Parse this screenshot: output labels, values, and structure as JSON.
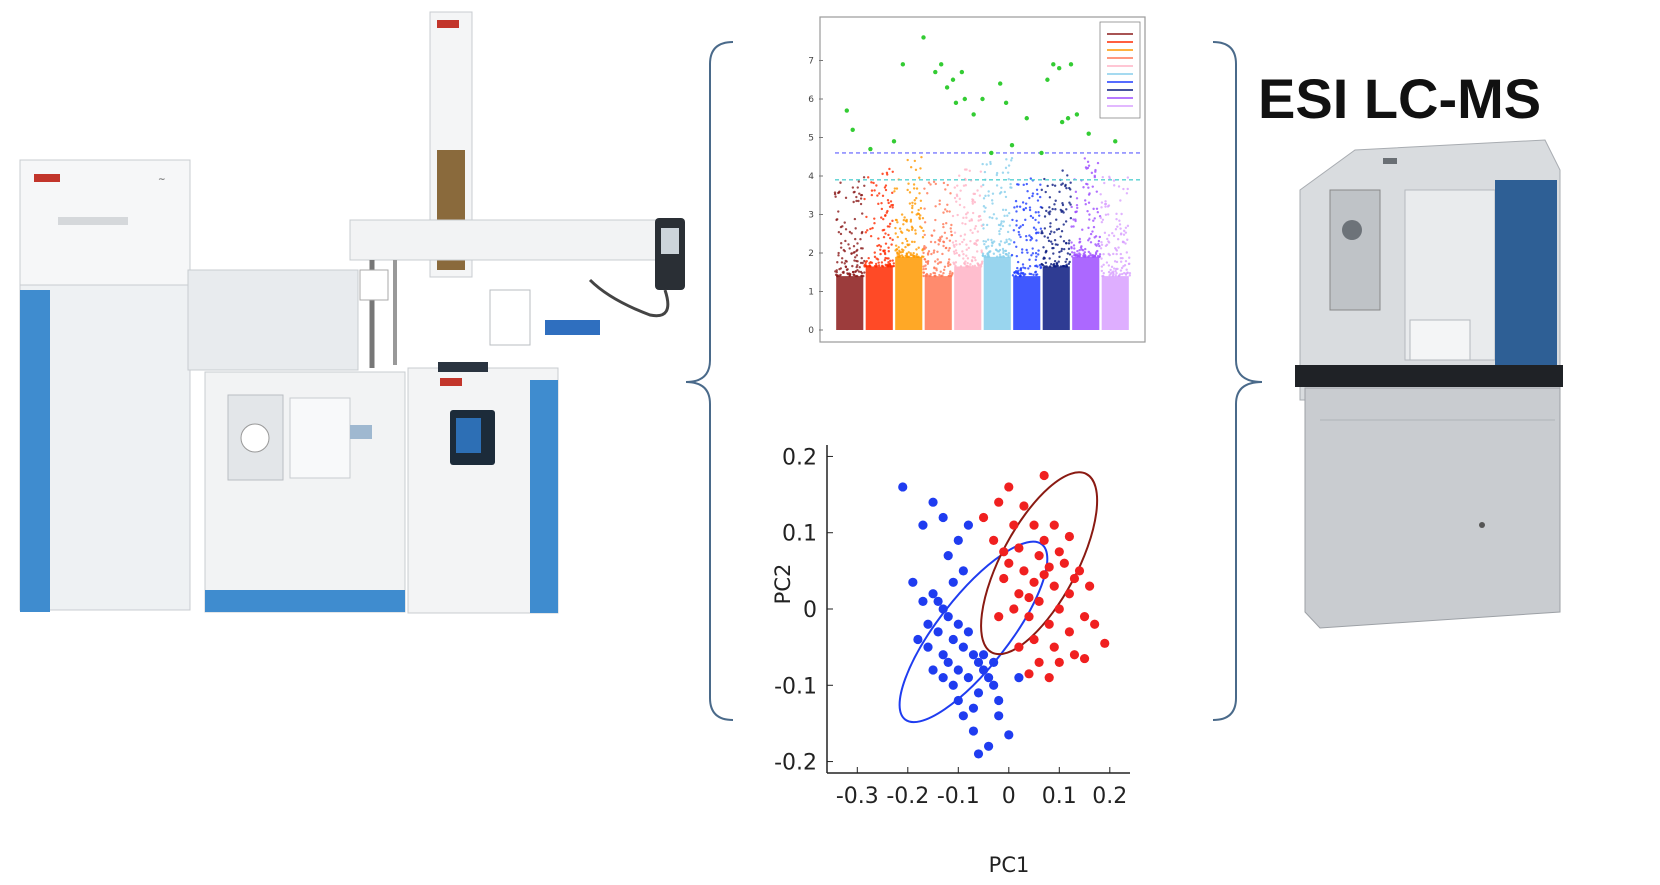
{
  "figure": {
    "right_instrument_label": "ESI LC-MS",
    "left_instrument": {
      "brand_badge": "Thermo"
    },
    "colors": {
      "brace": "#4a6a8a",
      "instrument_blue": "#3f8ccf",
      "instrument_white": "#eef1f3",
      "lcms_gray": "#c9ccd0"
    }
  },
  "chart_data": [
    {
      "type": "scatter",
      "subtype": "manhattan",
      "title": "",
      "xlabel": "",
      "ylabel": "",
      "yticks": [
        "0",
        "1",
        "2",
        "3",
        "4",
        "5",
        "6",
        "7"
      ],
      "ylim": [
        0,
        8
      ],
      "thresholds": [
        {
          "y": 4.6,
          "color": "#7a7aff",
          "style": "dashed"
        },
        {
          "y": 3.9,
          "color": "#55d0d0",
          "style": "dashed"
        }
      ],
      "legend_placement": "top-right",
      "series_colors": [
        "#8b1a1a",
        "#ff2a00",
        "#ff9900",
        "#ff7755",
        "#ffb3c6",
        "#87ceeb",
        "#1e3cff",
        "#0a1a80",
        "#9d4dff",
        "#d8a0ff"
      ],
      "significant_color": "#33cc33",
      "significant_points": [
        [
          0.04,
          5.7
        ],
        [
          0.06,
          5.2
        ],
        [
          0.12,
          4.7
        ],
        [
          0.23,
          6.9
        ],
        [
          0.3,
          7.6
        ],
        [
          0.34,
          6.7
        ],
        [
          0.36,
          6.9
        ],
        [
          0.38,
          6.3
        ],
        [
          0.4,
          6.5
        ],
        [
          0.41,
          5.9
        ],
        [
          0.43,
          6.7
        ],
        [
          0.44,
          6.0
        ],
        [
          0.47,
          5.6
        ],
        [
          0.5,
          6.0
        ],
        [
          0.53,
          4.6
        ],
        [
          0.56,
          6.4
        ],
        [
          0.58,
          5.9
        ],
        [
          0.6,
          4.8
        ],
        [
          0.65,
          5.5
        ],
        [
          0.72,
          6.5
        ],
        [
          0.74,
          6.9
        ],
        [
          0.76,
          6.8
        ],
        [
          0.77,
          5.4
        ],
        [
          0.79,
          5.5
        ],
        [
          0.8,
          6.9
        ],
        [
          0.82,
          5.6
        ],
        [
          0.86,
          5.1
        ],
        [
          0.95,
          4.9
        ],
        [
          0.2,
          4.9
        ],
        [
          0.7,
          4.6
        ]
      ]
    },
    {
      "type": "scatter",
      "subtype": "pca",
      "title": "",
      "xlabel": "PC1",
      "ylabel": "PC2",
      "xticks": [
        "-0.3",
        "-0.2",
        "-0.1",
        "0",
        "0.1",
        "0.2"
      ],
      "yticks": [
        "0.2",
        "0.1",
        "0",
        "-0.1",
        "-0.2"
      ],
      "xlim": [
        -0.36,
        0.24
      ],
      "ylim": [
        -0.215,
        0.215
      ],
      "series": [
        {
          "color": "#1f3cf0",
          "ellipse": {
            "cx": -0.07,
            "cy": -0.03,
            "rx": 0.22,
            "ry": 0.07,
            "angle_deg": 52,
            "stroke": "#1f3cf0"
          },
          "points": [
            [
              -0.21,
              0.16
            ],
            [
              -0.15,
              0.14
            ],
            [
              -0.17,
              0.11
            ],
            [
              -0.13,
              0.12
            ],
            [
              -0.1,
              0.09
            ],
            [
              -0.08,
              0.11
            ],
            [
              -0.12,
              0.07
            ],
            [
              -0.09,
              0.05
            ],
            [
              -0.19,
              0.035
            ],
            [
              -0.17,
              0.01
            ],
            [
              -0.15,
              0.02
            ],
            [
              -0.13,
              0.0
            ],
            [
              -0.12,
              -0.01
            ],
            [
              -0.14,
              -0.03
            ],
            [
              -0.1,
              -0.02
            ],
            [
              -0.18,
              -0.04
            ],
            [
              -0.16,
              -0.05
            ],
            [
              -0.11,
              -0.04
            ],
            [
              -0.09,
              -0.05
            ],
            [
              -0.13,
              -0.06
            ],
            [
              -0.07,
              -0.06
            ],
            [
              -0.06,
              -0.07
            ],
            [
              -0.1,
              -0.08
            ],
            [
              -0.08,
              -0.09
            ],
            [
              -0.05,
              -0.08
            ],
            [
              -0.04,
              -0.09
            ],
            [
              -0.03,
              -0.1
            ],
            [
              -0.11,
              -0.1
            ],
            [
              -0.06,
              -0.11
            ],
            [
              -0.02,
              -0.12
            ],
            [
              -0.09,
              -0.14
            ],
            [
              -0.07,
              -0.16
            ],
            [
              -0.04,
              -0.18
            ],
            [
              0.0,
              -0.165
            ],
            [
              -0.02,
              -0.14
            ],
            [
              0.02,
              -0.09
            ],
            [
              -0.15,
              -0.08
            ],
            [
              -0.12,
              -0.07
            ],
            [
              -0.14,
              0.01
            ],
            [
              -0.16,
              -0.02
            ],
            [
              -0.08,
              -0.03
            ],
            [
              -0.11,
              0.035
            ],
            [
              -0.05,
              -0.06
            ],
            [
              -0.06,
              -0.19
            ],
            [
              -0.03,
              -0.07
            ],
            [
              -0.13,
              -0.09
            ],
            [
              -0.1,
              -0.12
            ],
            [
              -0.07,
              -0.13
            ]
          ]
        },
        {
          "color": "#f02020",
          "ellipse": {
            "cx": 0.06,
            "cy": 0.06,
            "rx": 0.2,
            "ry": 0.075,
            "angle_deg": 62,
            "stroke": "#8a1a12"
          },
          "points": [
            [
              0.07,
              0.175
            ],
            [
              0.0,
              0.16
            ],
            [
              -0.02,
              0.14
            ],
            [
              0.03,
              0.135
            ],
            [
              -0.05,
              0.12
            ],
            [
              0.05,
              0.11
            ],
            [
              0.09,
              0.11
            ],
            [
              0.12,
              0.095
            ],
            [
              -0.03,
              0.09
            ],
            [
              0.02,
              0.08
            ],
            [
              0.06,
              0.07
            ],
            [
              0.1,
              0.075
            ],
            [
              0.14,
              0.05
            ],
            [
              0.0,
              0.06
            ],
            [
              0.03,
              0.05
            ],
            [
              0.07,
              0.045
            ],
            [
              -0.01,
              0.04
            ],
            [
              0.05,
              0.035
            ],
            [
              0.09,
              0.03
            ],
            [
              0.12,
              0.02
            ],
            [
              0.02,
              0.02
            ],
            [
              0.06,
              0.01
            ],
            [
              0.1,
              0.0
            ],
            [
              0.15,
              -0.01
            ],
            [
              0.04,
              -0.01
            ],
            [
              0.08,
              -0.02
            ],
            [
              -0.02,
              -0.01
            ],
            [
              0.01,
              0.0
            ],
            [
              0.12,
              -0.03
            ],
            [
              0.17,
              -0.02
            ],
            [
              0.05,
              -0.04
            ],
            [
              0.09,
              -0.05
            ],
            [
              0.13,
              -0.06
            ],
            [
              0.19,
              -0.045
            ],
            [
              0.02,
              -0.05
            ],
            [
              0.06,
              -0.07
            ],
            [
              0.1,
              -0.07
            ],
            [
              0.15,
              -0.065
            ],
            [
              0.08,
              -0.09
            ],
            [
              0.04,
              -0.085
            ],
            [
              0.11,
              0.06
            ],
            [
              0.07,
              0.09
            ],
            [
              0.01,
              0.11
            ],
            [
              0.13,
              0.04
            ],
            [
              0.16,
              0.03
            ],
            [
              -0.01,
              0.075
            ],
            [
              0.04,
              0.015
            ],
            [
              0.08,
              0.055
            ]
          ]
        }
      ]
    }
  ]
}
